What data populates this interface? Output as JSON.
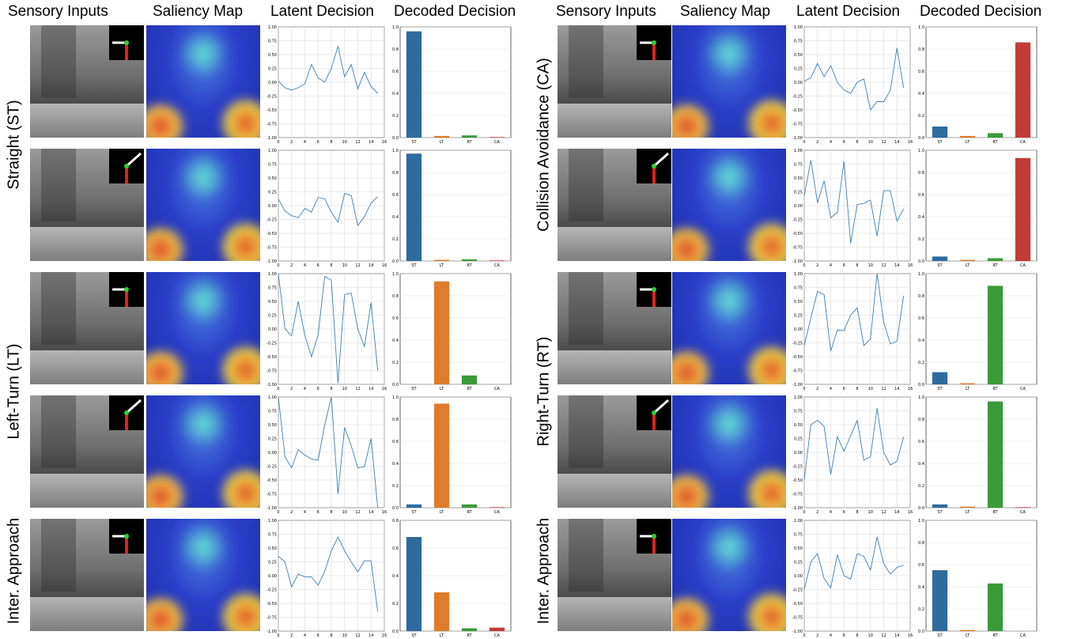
{
  "headers": {
    "sensory_inputs": "Sensory Inputs",
    "saliency_map": "Saliency Map",
    "latent_decision": "Latent Decision",
    "decoded_decision": "Decoded Decision"
  },
  "row_labels": {
    "left": [
      "Straight (ST)",
      "Left-Turn (LT)",
      "Inter. Approach"
    ],
    "right": [
      "Collision Avoidance (CA)",
      "Right-Turn (RT)",
      "Inter. Approach"
    ]
  },
  "colors": {
    "ST": "#2e6b9e",
    "LT": "#e07b2a",
    "RT": "#3a9a3a",
    "CA": "#c23b37",
    "line": "#3f7fb0"
  },
  "chart_data": [
    {
      "panel": "left",
      "row": 0,
      "type": "line",
      "ylim": [
        -1,
        1
      ],
      "xlim": [
        0,
        16
      ],
      "x": [
        0,
        1,
        2,
        3,
        4,
        5,
        6,
        7,
        8,
        9,
        10,
        11,
        12,
        13,
        14,
        15
      ],
      "y": [
        0.02,
        -0.1,
        -0.14,
        -0.1,
        -0.03,
        0.32,
        0.08,
        0.0,
        0.25,
        0.65,
        0.1,
        0.32,
        -0.12,
        0.18,
        -0.08,
        -0.2
      ],
      "xticks": [
        "0",
        "2",
        "4",
        "6",
        "8",
        "10",
        "12",
        "14",
        "16"
      ],
      "yticks": [
        "1.00",
        "0.75",
        "0.50",
        "0.25",
        "0.00",
        "-0.25",
        "-0.50",
        "-0.75",
        "-1.00"
      ],
      "bar": {
        "type": "bar",
        "categories": [
          "ST",
          "LT",
          "RT",
          "CA"
        ],
        "values": [
          0.96,
          0.015,
          0.02,
          0.005
        ],
        "ylim": [
          0,
          1
        ],
        "yticks": [
          "1.0",
          "0.8",
          "0.6",
          "0.4",
          "0.2",
          "0.0"
        ]
      }
    },
    {
      "panel": "left",
      "row": 1,
      "type": "line",
      "ylim": [
        -1,
        1
      ],
      "xlim": [
        0,
        16
      ],
      "x": [
        0,
        1,
        2,
        3,
        4,
        5,
        6,
        7,
        8,
        9,
        10,
        11,
        12,
        13,
        14,
        15
      ],
      "y": [
        0.12,
        -0.1,
        -0.18,
        -0.22,
        -0.05,
        -0.12,
        0.15,
        0.12,
        -0.12,
        -0.3,
        0.22,
        0.18,
        -0.36,
        -0.2,
        0.05,
        0.16
      ],
      "xticks": [
        "0",
        "2",
        "4",
        "6",
        "8",
        "10",
        "12",
        "14",
        "16"
      ],
      "yticks": [
        "1.00",
        "0.75",
        "0.50",
        "0.25",
        "0.00",
        "-0.25",
        "-0.50",
        "-0.75",
        "-1.00"
      ],
      "bar": {
        "type": "bar",
        "categories": [
          "ST",
          "LT",
          "RT",
          "CA"
        ],
        "values": [
          0.97,
          0.01,
          0.015,
          0.005
        ],
        "ylim": [
          0,
          1
        ],
        "yticks": [
          "1.0",
          "0.8",
          "0.6",
          "0.4",
          "0.2",
          "0.0"
        ]
      }
    },
    {
      "panel": "left",
      "row": 2,
      "type": "line",
      "ylim": [
        -1,
        1
      ],
      "xlim": [
        0,
        16
      ],
      "x": [
        0,
        1,
        2,
        3,
        4,
        5,
        6,
        7,
        8,
        9,
        10,
        11,
        12,
        13,
        14,
        15
      ],
      "y": [
        1.0,
        0.0,
        -0.12,
        0.5,
        -0.12,
        -0.5,
        -0.1,
        0.95,
        0.88,
        -0.98,
        0.62,
        0.65,
        0.0,
        -0.32,
        0.48,
        -0.75
      ],
      "xticks": [
        "0",
        "2",
        "4",
        "6",
        "8",
        "10",
        "12",
        "14",
        "16"
      ],
      "yticks": [
        "1.00",
        "0.75",
        "0.50",
        "0.25",
        "0.00",
        "-0.25",
        "-0.50",
        "-0.75",
        "-1.00"
      ],
      "bar": {
        "type": "bar",
        "categories": [
          "ST",
          "LT",
          "RT",
          "CA"
        ],
        "values": [
          0.0,
          0.93,
          0.08,
          0.0
        ],
        "ylim": [
          0,
          1
        ],
        "yticks": [
          "1.0",
          "0.8",
          "0.6",
          "0.4",
          "0.2",
          "0.0"
        ]
      }
    },
    {
      "panel": "left",
      "row": 3,
      "type": "line",
      "ylim": [
        -1,
        1
      ],
      "xlim": [
        0,
        16
      ],
      "x": [
        0,
        1,
        2,
        3,
        4,
        5,
        6,
        7,
        8,
        9,
        10,
        11,
        12,
        13,
        14,
        15
      ],
      "y": [
        1.0,
        -0.08,
        -0.28,
        0.05,
        -0.05,
        -0.12,
        -0.14,
        0.5,
        1.0,
        -0.75,
        0.45,
        0.12,
        -0.28,
        -0.26,
        0.25,
        -1.0
      ],
      "xticks": [
        "0",
        "2",
        "4",
        "6",
        "8",
        "10",
        "12",
        "14",
        "16"
      ],
      "yticks": [
        "1.00",
        "0.75",
        "0.50",
        "0.25",
        "0.00",
        "-0.25",
        "-0.50",
        "-0.75",
        "-1.00"
      ],
      "bar": {
        "type": "bar",
        "categories": [
          "ST",
          "LT",
          "RT",
          "CA"
        ],
        "values": [
          0.03,
          0.94,
          0.03,
          0.005
        ],
        "ylim": [
          0,
          1
        ],
        "yticks": [
          "1.0",
          "0.8",
          "0.6",
          "0.4",
          "0.2",
          "0.0"
        ]
      }
    },
    {
      "panel": "left",
      "row": 4,
      "type": "line",
      "ylim": [
        -1,
        1
      ],
      "xlim": [
        0,
        16
      ],
      "x": [
        0,
        1,
        2,
        3,
        4,
        5,
        6,
        7,
        8,
        9,
        10,
        11,
        12,
        13,
        14,
        15
      ],
      "y": [
        0.35,
        0.25,
        -0.2,
        0.03,
        -0.02,
        -0.02,
        -0.17,
        0.08,
        0.45,
        0.7,
        0.45,
        0.25,
        0.07,
        0.27,
        0.27,
        -0.65
      ],
      "xticks": [
        "0",
        "2",
        "4",
        "6",
        "8",
        "10",
        "12",
        "14",
        "16"
      ],
      "yticks": [
        "1.00",
        "0.75",
        "0.50",
        "0.25",
        "0.00",
        "-0.25",
        "-0.50",
        "-0.75",
        "-1.00"
      ],
      "bar": {
        "type": "bar",
        "categories": [
          "ST",
          "LT",
          "RT",
          "CA"
        ],
        "values": [
          0.68,
          0.28,
          0.02,
          0.025
        ],
        "ylim": [
          0,
          0.8
        ],
        "yticks": [
          "0.8",
          "0.6",
          "0.4",
          "0.2",
          "0.0"
        ]
      }
    },
    {
      "panel": "right",
      "row": 0,
      "type": "line",
      "ylim": [
        -1,
        1
      ],
      "xlim": [
        0,
        16
      ],
      "x": [
        0,
        1,
        2,
        3,
        4,
        5,
        6,
        7,
        8,
        9,
        10,
        11,
        12,
        13,
        14,
        15
      ],
      "y": [
        0.02,
        0.08,
        0.34,
        0.1,
        0.3,
        0.0,
        -0.14,
        -0.2,
        0.0,
        0.06,
        -0.5,
        -0.35,
        -0.35,
        -0.15,
        0.62,
        -0.1
      ],
      "xticks": [
        "0",
        "2",
        "4",
        "6",
        "8",
        "10",
        "12",
        "14",
        "16"
      ],
      "yticks": [
        "1.00",
        "0.75",
        "0.50",
        "0.25",
        "0.00",
        "-0.25",
        "-0.50",
        "-0.75",
        "-1.00"
      ],
      "bar": {
        "type": "bar",
        "categories": [
          "ST",
          "LT",
          "RT",
          "CA"
        ],
        "values": [
          0.1,
          0.015,
          0.04,
          0.86
        ],
        "ylim": [
          0,
          1
        ],
        "yticks": [
          "1.0",
          "0.8",
          "0.6",
          "0.4",
          "0.2",
          "0.0"
        ]
      }
    },
    {
      "panel": "right",
      "row": 1,
      "type": "line",
      "ylim": [
        -1,
        1
      ],
      "xlim": [
        0,
        16
      ],
      "x": [
        0,
        1,
        2,
        3,
        4,
        5,
        6,
        7,
        8,
        9,
        10,
        11,
        12,
        13,
        14,
        15
      ],
      "y": [
        0.18,
        0.82,
        0.05,
        0.45,
        -0.22,
        -0.12,
        0.8,
        -0.68,
        0.02,
        0.04,
        0.1,
        -0.55,
        0.27,
        0.27,
        -0.28,
        -0.06
      ],
      "xticks": [
        "0",
        "2",
        "4",
        "6",
        "8",
        "10",
        "12",
        "14",
        "16"
      ],
      "yticks": [
        "1.00",
        "0.75",
        "0.50",
        "0.25",
        "0.00",
        "-0.25",
        "-0.50",
        "-0.75",
        "-1.00"
      ],
      "bar": {
        "type": "bar",
        "categories": [
          "ST",
          "LT",
          "RT",
          "CA"
        ],
        "values": [
          0.04,
          0.01,
          0.025,
          0.93
        ],
        "ylim": [
          0,
          1
        ],
        "yticks": [
          "1.0",
          "0.8",
          "0.6",
          "0.4",
          "0.2",
          "0.0"
        ]
      }
    },
    {
      "panel": "right",
      "row": 2,
      "type": "line",
      "ylim": [
        -1,
        1
      ],
      "xlim": [
        0,
        16
      ],
      "x": [
        0,
        1,
        2,
        3,
        4,
        5,
        6,
        7,
        8,
        9,
        10,
        11,
        12,
        13,
        14,
        15
      ],
      "y": [
        -0.3,
        0.2,
        0.68,
        0.62,
        -0.4,
        -0.02,
        -0.03,
        0.25,
        0.38,
        -0.3,
        -0.18,
        1.0,
        0.12,
        -0.27,
        -0.22,
        0.6
      ],
      "xticks": [
        "0",
        "2",
        "4",
        "6",
        "8",
        "10",
        "12",
        "14",
        "16"
      ],
      "yticks": [
        "1.00",
        "0.75",
        "0.50",
        "0.25",
        "0.00",
        "-0.25",
        "-0.50",
        "-0.75",
        "-1.00"
      ],
      "bar": {
        "type": "bar",
        "categories": [
          "ST",
          "LT",
          "RT",
          "CA"
        ],
        "values": [
          0.11,
          0.01,
          0.89,
          0.0
        ],
        "ylim": [
          0,
          1
        ],
        "yticks": [
          "1.0",
          "0.8",
          "0.6",
          "0.4",
          "0.2",
          "0.0"
        ]
      }
    },
    {
      "panel": "right",
      "row": 3,
      "type": "line",
      "ylim": [
        -1,
        1
      ],
      "xlim": [
        0,
        16
      ],
      "x": [
        0,
        1,
        2,
        3,
        4,
        5,
        6,
        7,
        8,
        9,
        10,
        11,
        12,
        13,
        14,
        15
      ],
      "y": [
        -0.5,
        0.5,
        0.58,
        0.47,
        -0.4,
        0.28,
        0.02,
        0.3,
        0.58,
        -0.14,
        -0.08,
        0.8,
        0.0,
        -0.23,
        -0.16,
        0.28
      ],
      "xticks": [
        "0",
        "2",
        "4",
        "6",
        "8",
        "10",
        "12",
        "14",
        "16"
      ],
      "yticks": [
        "1.00",
        "0.75",
        "0.50",
        "0.25",
        "0.00",
        "-0.25",
        "-0.50",
        "-0.75",
        "-1.00"
      ],
      "bar": {
        "type": "bar",
        "categories": [
          "ST",
          "LT",
          "RT",
          "CA"
        ],
        "values": [
          0.03,
          0.01,
          0.96,
          0.005
        ],
        "ylim": [
          0,
          1
        ],
        "yticks": [
          "1.0",
          "0.8",
          "0.6",
          "0.4",
          "0.2",
          "0.0"
        ]
      }
    },
    {
      "panel": "right",
      "row": 4,
      "type": "line",
      "ylim": [
        -1,
        1
      ],
      "xlim": [
        0,
        16
      ],
      "x": [
        0,
        1,
        2,
        3,
        4,
        5,
        6,
        7,
        8,
        9,
        10,
        11,
        12,
        13,
        14,
        15
      ],
      "y": [
        -0.25,
        0.25,
        0.4,
        -0.05,
        -0.22,
        0.38,
        0.0,
        -0.06,
        0.4,
        0.35,
        0.1,
        0.7,
        0.22,
        0.03,
        0.15,
        0.19
      ],
      "xticks": [
        "0",
        "2",
        "4",
        "6",
        "8",
        "10",
        "12",
        "14",
        "16"
      ],
      "yticks": [
        "1.00",
        "0.75",
        "0.50",
        "0.25",
        "0.00",
        "-0.25",
        "-0.50",
        "-0.75",
        "-1.00"
      ],
      "bar": {
        "type": "bar",
        "categories": [
          "ST",
          "LT",
          "RT",
          "CA"
        ],
        "values": [
          0.55,
          0.01,
          0.43,
          0.0
        ],
        "ylim": [
          0,
          1
        ],
        "yticks": [
          "1.0",
          "0.8",
          "0.6",
          "0.4",
          "0.2",
          "0.0"
        ]
      }
    }
  ]
}
